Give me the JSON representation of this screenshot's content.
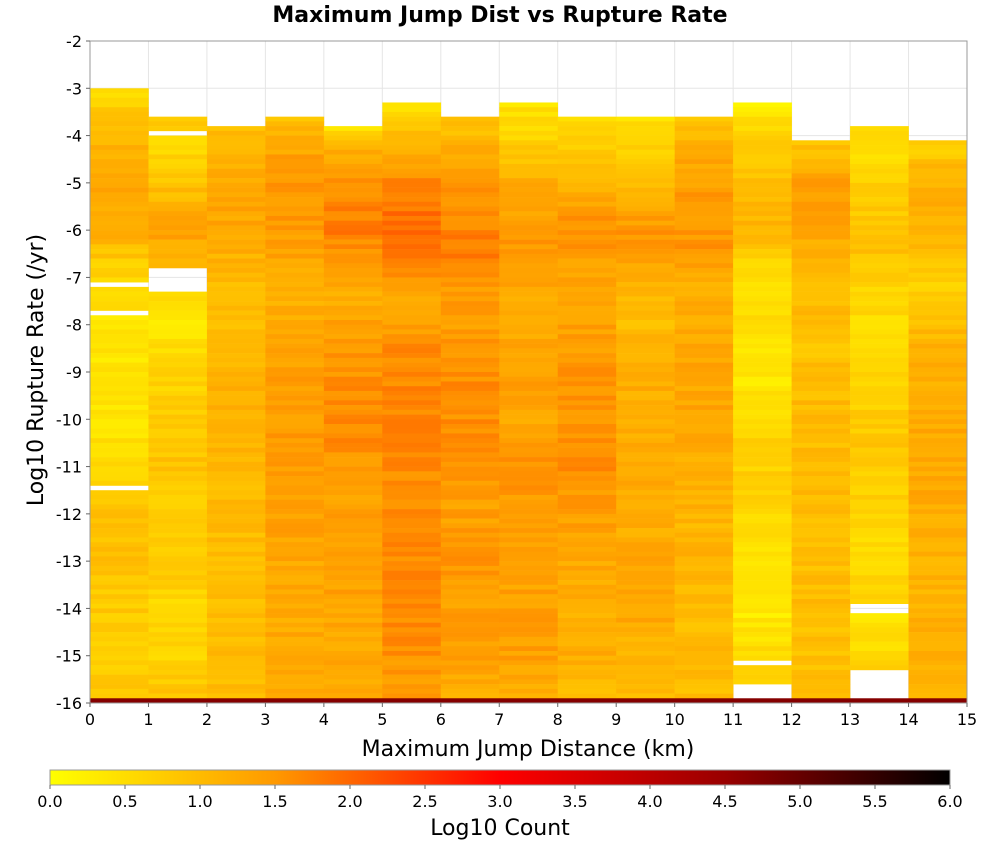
{
  "chart_data": {
    "type": "heatmap",
    "title": "Maximum Jump Dist vs Rupture Rate",
    "xlabel": "Maximum Jump Distance (km)",
    "ylabel": "Log10 Rupture Rate (/yr)",
    "xlim": [
      0,
      15
    ],
    "ylim": [
      -16,
      -2
    ],
    "x_ticks": [
      "0",
      "1",
      "2",
      "3",
      "4",
      "5",
      "6",
      "7",
      "8",
      "9",
      "10",
      "11",
      "12",
      "13",
      "14",
      "15"
    ],
    "y_ticks": [
      "-2",
      "-3",
      "-4",
      "-5",
      "-6",
      "-7",
      "-8",
      "-9",
      "-10",
      "-11",
      "-12",
      "-13",
      "-14",
      "-15",
      "-16"
    ],
    "x_bin_width": 1,
    "y_bin_width": 0.1,
    "grid": true,
    "colorbar": {
      "label": "Log10 Count",
      "range": [
        0,
        6
      ],
      "ticks": [
        "0.0",
        "0.5",
        "1.0",
        "1.5",
        "2.0",
        "2.5",
        "3.0",
        "3.5",
        "4.0",
        "4.5",
        "5.0",
        "5.5",
        "6.0"
      ],
      "colors": [
        "#ffff00",
        "#ff9900",
        "#ff0000",
        "#990000",
        "#000000"
      ]
    },
    "columns": [
      {
        "x": 0.5,
        "rate_max": -3.0,
        "profile": [
          [
            -3.0,
            0.4
          ],
          [
            -4.0,
            1.1
          ],
          [
            -5.0,
            1.3
          ],
          [
            -6.0,
            1.2
          ],
          [
            -6.8,
            0.7
          ],
          [
            -7.5,
            0.6
          ],
          [
            -8.0,
            0.3
          ],
          [
            -9.0,
            0.4
          ],
          [
            -10.0,
            0.4
          ],
          [
            -11.0,
            0.6
          ],
          [
            -12.0,
            0.9
          ],
          [
            -13.0,
            0.9
          ],
          [
            -14.0,
            0.8
          ],
          [
            -15.0,
            0.7
          ],
          [
            -15.9,
            0.9
          ]
        ],
        "gaps": [
          -7.1,
          -7.7,
          -11.4
        ]
      },
      {
        "x": 1.5,
        "rate_max": -3.6,
        "profile": [
          [
            -3.6,
            0.8
          ],
          [
            -4.2,
            0.6
          ],
          [
            -5.0,
            0.9
          ],
          [
            -6.0,
            1.4
          ],
          [
            -6.5,
            1.1
          ],
          [
            -7.5,
            0.4
          ],
          [
            -8.0,
            0.4
          ],
          [
            -9.0,
            0.6
          ],
          [
            -10.0,
            0.8
          ],
          [
            -11.0,
            0.9
          ],
          [
            -12.0,
            0.7
          ],
          [
            -13.0,
            0.8
          ],
          [
            -14.0,
            0.6
          ],
          [
            -15.0,
            0.6
          ],
          [
            -15.9,
            0.9
          ]
        ],
        "gaps": [
          -3.9,
          -6.8,
          -6.9,
          -7.0,
          -7.1,
          -7.2
        ]
      },
      {
        "x": 2.5,
        "rate_max": -3.8,
        "profile": [
          [
            -3.8,
            0.9
          ],
          [
            -5.0,
            1.3
          ],
          [
            -6.0,
            1.3
          ],
          [
            -7.0,
            1.0
          ],
          [
            -8.0,
            1.0
          ],
          [
            -9.0,
            1.1
          ],
          [
            -10.0,
            1.2
          ],
          [
            -11.0,
            1.0
          ],
          [
            -12.0,
            1.0
          ],
          [
            -13.0,
            1.0
          ],
          [
            -14.0,
            1.0
          ],
          [
            -15.0,
            1.0
          ],
          [
            -15.9,
            1.0
          ]
        ],
        "gaps": []
      },
      {
        "x": 3.5,
        "rate_max": -3.6,
        "profile": [
          [
            -3.6,
            0.9
          ],
          [
            -4.5,
            1.4
          ],
          [
            -5.5,
            1.5
          ],
          [
            -6.5,
            1.4
          ],
          [
            -7.0,
            1.2
          ],
          [
            -8.0,
            1.2
          ],
          [
            -9.0,
            1.4
          ],
          [
            -10.0,
            1.4
          ],
          [
            -11.0,
            1.5
          ],
          [
            -12.0,
            1.4
          ],
          [
            -13.0,
            1.3
          ],
          [
            -14.0,
            1.2
          ],
          [
            -15.0,
            1.3
          ],
          [
            -15.9,
            1.2
          ]
        ],
        "gaps": []
      },
      {
        "x": 4.5,
        "rate_max": -3.8,
        "profile": [
          [
            -3.8,
            0.4
          ],
          [
            -4.3,
            1.2
          ],
          [
            -5.0,
            1.6
          ],
          [
            -6.0,
            1.8
          ],
          [
            -6.8,
            1.4
          ],
          [
            -7.5,
            1.2
          ],
          [
            -8.5,
            1.5
          ],
          [
            -9.5,
            1.6
          ],
          [
            -10.5,
            1.6
          ],
          [
            -11.5,
            1.4
          ],
          [
            -12.5,
            1.4
          ],
          [
            -13.5,
            1.4
          ],
          [
            -14.5,
            1.3
          ],
          [
            -15.5,
            1.3
          ],
          [
            -15.9,
            1.2
          ]
        ],
        "gaps": []
      },
      {
        "x": 5.5,
        "rate_max": -3.3,
        "profile": [
          [
            -3.3,
            0.3
          ],
          [
            -4.0,
            1.0
          ],
          [
            -5.0,
            1.7
          ],
          [
            -6.0,
            2.0
          ],
          [
            -7.0,
            1.5
          ],
          [
            -7.5,
            1.2
          ],
          [
            -8.5,
            1.6
          ],
          [
            -9.5,
            1.7
          ],
          [
            -10.5,
            1.7
          ],
          [
            -11.5,
            1.6
          ],
          [
            -12.5,
            1.6
          ],
          [
            -13.5,
            1.7
          ],
          [
            -14.5,
            1.6
          ],
          [
            -15.5,
            1.5
          ],
          [
            -15.9,
            1.4
          ]
        ],
        "gaps": []
      },
      {
        "x": 6.5,
        "rate_max": -3.6,
        "profile": [
          [
            -3.6,
            0.8
          ],
          [
            -4.5,
            1.3
          ],
          [
            -5.5,
            1.6
          ],
          [
            -6.5,
            1.8
          ],
          [
            -7.0,
            1.5
          ],
          [
            -8.0,
            1.4
          ],
          [
            -9.0,
            1.6
          ],
          [
            -10.0,
            1.6
          ],
          [
            -11.0,
            1.5
          ],
          [
            -12.0,
            1.4
          ],
          [
            -13.0,
            1.5
          ],
          [
            -14.0,
            1.4
          ],
          [
            -15.0,
            1.4
          ],
          [
            -15.9,
            1.2
          ]
        ],
        "gaps": []
      },
      {
        "x": 7.5,
        "rate_max": -3.3,
        "profile": [
          [
            -3.3,
            0.4
          ],
          [
            -4.0,
            0.6
          ],
          [
            -5.0,
            1.2
          ],
          [
            -6.0,
            1.5
          ],
          [
            -7.0,
            1.3
          ],
          [
            -8.0,
            1.2
          ],
          [
            -9.0,
            1.4
          ],
          [
            -10.0,
            1.3
          ],
          [
            -11.0,
            1.6
          ],
          [
            -12.0,
            1.4
          ],
          [
            -13.0,
            1.3
          ],
          [
            -14.0,
            1.4
          ],
          [
            -15.0,
            1.4
          ],
          [
            -15.9,
            1.2
          ]
        ],
        "gaps": []
      },
      {
        "x": 8.5,
        "rate_max": -3.6,
        "profile": [
          [
            -3.6,
            0.5
          ],
          [
            -4.5,
            0.8
          ],
          [
            -5.5,
            1.4
          ],
          [
            -6.0,
            1.6
          ],
          [
            -7.0,
            1.3
          ],
          [
            -8.0,
            1.4
          ],
          [
            -9.0,
            1.5
          ],
          [
            -10.0,
            1.5
          ],
          [
            -11.0,
            1.6
          ],
          [
            -12.0,
            1.4
          ],
          [
            -13.0,
            1.3
          ],
          [
            -14.0,
            1.2
          ],
          [
            -15.0,
            1.2
          ],
          [
            -15.9,
            1.0
          ]
        ],
        "gaps": []
      },
      {
        "x": 9.5,
        "rate_max": -3.6,
        "profile": [
          [
            -3.6,
            0.4
          ],
          [
            -4.5,
            0.8
          ],
          [
            -5.5,
            1.3
          ],
          [
            -6.3,
            1.6
          ],
          [
            -7.0,
            1.1
          ],
          [
            -8.0,
            1.0
          ],
          [
            -9.0,
            1.2
          ],
          [
            -10.0,
            1.2
          ],
          [
            -11.0,
            1.3
          ],
          [
            -12.0,
            1.2
          ],
          [
            -13.0,
            1.3
          ],
          [
            -14.0,
            1.3
          ],
          [
            -15.0,
            1.1
          ],
          [
            -15.9,
            1.0
          ]
        ],
        "gaps": []
      },
      {
        "x": 10.5,
        "rate_max": -3.6,
        "profile": [
          [
            -3.6,
            0.8
          ],
          [
            -4.5,
            1.3
          ],
          [
            -5.5,
            1.5
          ],
          [
            -6.5,
            1.5
          ],
          [
            -7.0,
            1.2
          ],
          [
            -8.0,
            1.2
          ],
          [
            -9.0,
            1.3
          ],
          [
            -10.0,
            1.3
          ],
          [
            -11.0,
            1.2
          ],
          [
            -12.0,
            1.1
          ],
          [
            -13.0,
            1.1
          ],
          [
            -14.0,
            1.0
          ],
          [
            -15.0,
            1.0
          ],
          [
            -15.9,
            1.0
          ]
        ],
        "gaps": []
      },
      {
        "x": 11.5,
        "rate_max": -3.3,
        "profile": [
          [
            -3.3,
            0.2
          ],
          [
            -4.0,
            0.7
          ],
          [
            -5.0,
            1.0
          ],
          [
            -6.0,
            1.1
          ],
          [
            -7.0,
            0.4
          ],
          [
            -8.0,
            0.5
          ],
          [
            -9.0,
            0.3
          ],
          [
            -10.0,
            0.6
          ],
          [
            -11.0,
            0.7
          ],
          [
            -12.0,
            0.6
          ],
          [
            -13.0,
            0.4
          ],
          [
            -14.0,
            0.3
          ],
          [
            -15.0,
            0.5
          ],
          [
            -15.9,
            0.8
          ]
        ],
        "gaps": [
          -15.1,
          -15.6,
          -15.7,
          -15.8
        ]
      },
      {
        "x": 12.5,
        "rate_max": -4.1,
        "profile": [
          [
            -4.1,
            0.8
          ],
          [
            -5.0,
            1.4
          ],
          [
            -6.0,
            1.3
          ],
          [
            -6.5,
            1.1
          ],
          [
            -7.5,
            1.0
          ],
          [
            -8.5,
            0.9
          ],
          [
            -9.5,
            1.0
          ],
          [
            -10.5,
            1.0
          ],
          [
            -11.5,
            1.0
          ],
          [
            -12.5,
            0.9
          ],
          [
            -13.5,
            1.0
          ],
          [
            -14.5,
            0.9
          ],
          [
            -15.5,
            1.0
          ],
          [
            -15.9,
            1.0
          ]
        ],
        "gaps": []
      },
      {
        "x": 13.5,
        "rate_max": -3.8,
        "profile": [
          [
            -3.8,
            0.6
          ],
          [
            -4.5,
            0.5
          ],
          [
            -5.5,
            0.8
          ],
          [
            -6.5,
            0.9
          ],
          [
            -7.5,
            0.6
          ],
          [
            -8.5,
            0.4
          ],
          [
            -9.5,
            0.7
          ],
          [
            -10.5,
            0.8
          ],
          [
            -11.5,
            0.7
          ],
          [
            -12.5,
            0.5
          ],
          [
            -13.5,
            0.7
          ],
          [
            -14.3,
            0.4
          ],
          [
            -15.0,
            0.5
          ],
          [
            -15.2,
            0.8
          ]
        ],
        "gaps": [
          -13.9,
          -14.0,
          -15.3,
          -15.4,
          -15.5,
          -15.6,
          -15.7,
          -15.8
        ]
      },
      {
        "x": 14.5,
        "rate_max": -4.1,
        "profile": [
          [
            -4.1,
            0.6
          ],
          [
            -4.8,
            1.1
          ],
          [
            -5.5,
            1.2
          ],
          [
            -6.5,
            1.0
          ],
          [
            -7.0,
            0.7
          ],
          [
            -7.8,
            0.8
          ],
          [
            -8.5,
            1.2
          ],
          [
            -9.5,
            1.2
          ],
          [
            -10.5,
            1.3
          ],
          [
            -11.5,
            1.3
          ],
          [
            -12.5,
            1.2
          ],
          [
            -13.5,
            1.1
          ],
          [
            -14.5,
            1.2
          ],
          [
            -15.5,
            1.2
          ],
          [
            -15.9,
            1.1
          ]
        ],
        "gaps": []
      }
    ],
    "bottom_row": {
      "rate": -15.95,
      "log10_count": 4.7
    }
  },
  "colors": {
    "axis": "#999999",
    "grid": "#e5e5e5",
    "gap": "#ffffff"
  }
}
